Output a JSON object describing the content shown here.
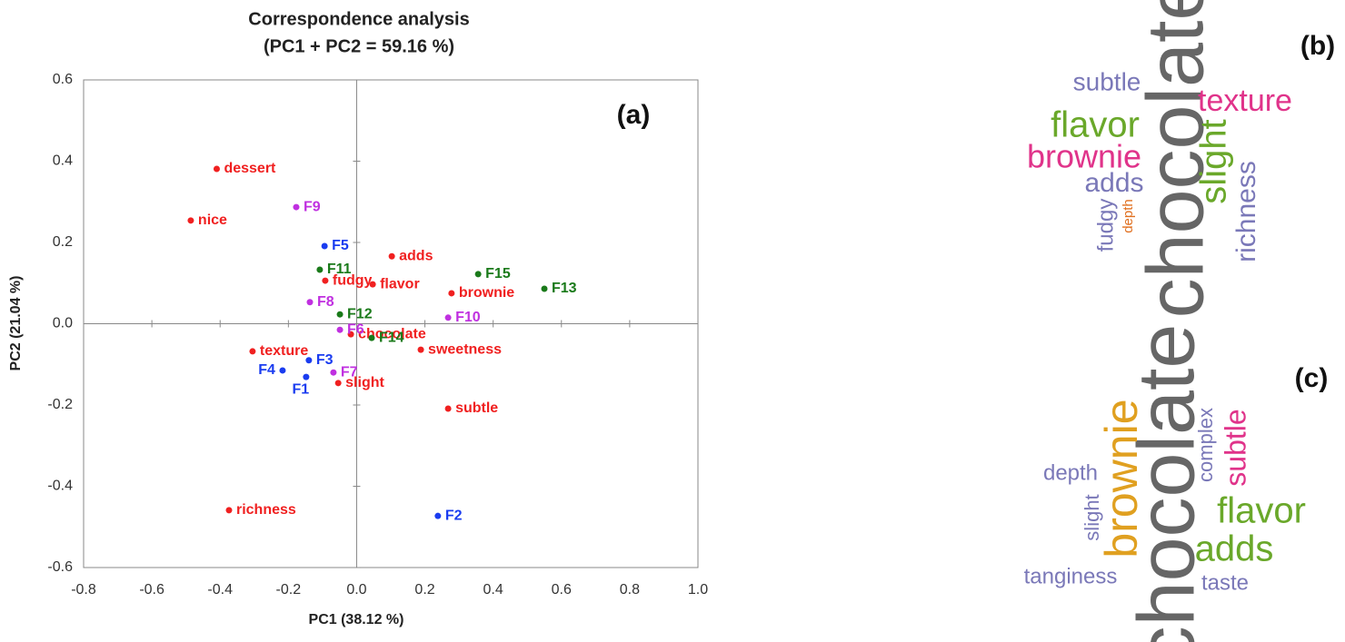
{
  "chart_data": [
    {
      "type": "scatter",
      "title": "Correspondence analysis",
      "subtitle": "(PC1 + PC2 = 59.16 %)",
      "panel_label": "(a)",
      "x_label": "PC1 (38.12 %)",
      "y_label": "PC2 (21.04 %)",
      "xlim": [
        -0.8,
        1.0
      ],
      "ylim": [
        -0.6,
        0.6
      ],
      "xticks": [
        -0.8,
        -0.6,
        -0.4,
        -0.2,
        {
          "value": 0,
          "label": "0.0"
        },
        0.2,
        0.4,
        0.6,
        0.8,
        {
          "value": 1.0,
          "label": "1.0"
        }
      ],
      "yticks": [
        -0.6,
        -0.4,
        -0.2,
        {
          "value": 0,
          "label": "0.0"
        },
        0.2,
        0.4,
        0.6
      ],
      "series": [
        {
          "color": "#f02020",
          "labels": [
            "dessert",
            "nice",
            "adds",
            "fudgy",
            "flavor",
            "brownie",
            "chocolate",
            "sweetness",
            "texture",
            "slight",
            "subtle",
            "richness"
          ],
          "x": [
            -0.41,
            -0.486,
            0.103,
            -0.092,
            0.047,
            0.278,
            -0.017,
            0.188,
            -0.305,
            -0.054,
            0.268,
            -0.374
          ],
          "values": [
            0.381,
            0.254,
            0.166,
            0.106,
            0.097,
            0.075,
            -0.026,
            -0.064,
            -0.068,
            -0.146,
            -0.209,
            -0.459
          ]
        },
        {
          "color": "#1a3cf0",
          "labels": [
            "F1",
            "F2",
            "F3",
            "F4",
            "F5"
          ],
          "x": [
            -0.148,
            0.238,
            -0.14,
            -0.217,
            -0.094
          ],
          "values": [
            -0.131,
            -0.473,
            -0.09,
            -0.115,
            0.191
          ]
        },
        {
          "color": "#c030e0",
          "labels": [
            "F6",
            "F7",
            "F8",
            "F9",
            "F10"
          ],
          "x": [
            -0.049,
            -0.068,
            -0.137,
            -0.177,
            0.268
          ],
          "values": [
            -0.015,
            -0.12,
            0.053,
            0.287,
            0.015
          ]
        },
        {
          "color": "#1a7a1a",
          "labels": [
            "F11",
            "F12",
            "F13",
            "F14",
            "F15"
          ],
          "x": [
            -0.108,
            -0.049,
            0.55,
            0.044,
            0.356
          ],
          "values": [
            0.133,
            0.023,
            0.086,
            -0.035,
            0.122
          ]
        }
      ]
    },
    {
      "type": "wordcloud",
      "panel_label": "(b)",
      "words": [
        {
          "text": "chocolate",
          "color": "#666666"
        },
        {
          "text": "subtle",
          "color": "#7a78b8"
        },
        {
          "text": "texture",
          "color": "#e0338a"
        },
        {
          "text": "flavor",
          "color": "#6aa82a"
        },
        {
          "text": "brownie",
          "color": "#e0338a"
        },
        {
          "text": "slight",
          "color": "#6aa82a"
        },
        {
          "text": "adds",
          "color": "#7a78b8"
        },
        {
          "text": "richness",
          "color": "#7a78b8"
        },
        {
          "text": "fudgy",
          "color": "#7a78b8"
        },
        {
          "text": "depth",
          "color": "#e07020"
        }
      ]
    },
    {
      "type": "wordcloud",
      "panel_label": "(c)",
      "words": [
        {
          "text": "chocolate",
          "color": "#666666"
        },
        {
          "text": "brownie",
          "color": "#e0a020"
        },
        {
          "text": "complex",
          "color": "#7a78b8"
        },
        {
          "text": "subtle",
          "color": "#e0338a"
        },
        {
          "text": "depth",
          "color": "#7a78b8"
        },
        {
          "text": "slight",
          "color": "#7a78b8"
        },
        {
          "text": "flavor",
          "color": "#6aa82a"
        },
        {
          "text": "adds",
          "color": "#6aa82a"
        },
        {
          "text": "tanginess",
          "color": "#7a78b8"
        },
        {
          "text": "taste",
          "color": "#7a78b8"
        }
      ]
    }
  ]
}
